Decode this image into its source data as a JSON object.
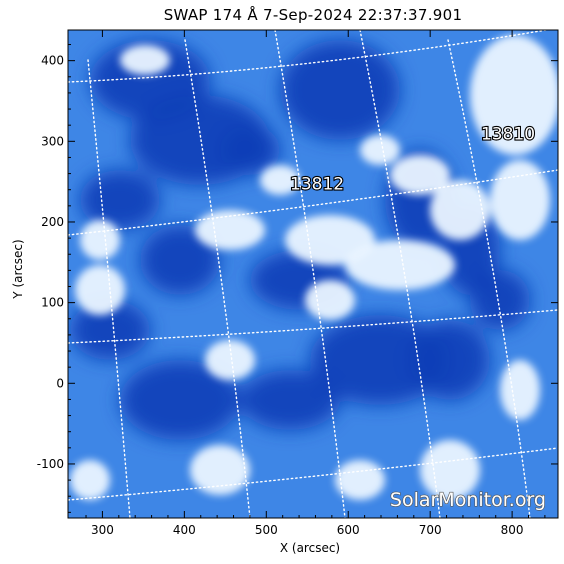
{
  "title": "SWAP 174 Å  7-Sep-2024 22:37:37.901",
  "axes": {
    "xlabel": "X (arcsec)",
    "ylabel": "Y (arcsec)",
    "xlim": [
      258,
      856
    ],
    "ylim": [
      -167,
      438
    ],
    "xticks": [
      300,
      400,
      500,
      600,
      700,
      800
    ],
    "yticks": [
      -100,
      0,
      100,
      200,
      300,
      400
    ]
  },
  "active_regions": [
    {
      "number": "13812",
      "x": 562,
      "y": 240
    },
    {
      "number": "13810",
      "x": 795,
      "y": 302
    }
  ],
  "colors": {
    "dark_blue": "#0a3fb8",
    "mid_blue": "#3e86e6",
    "bright": "#eaf4ff",
    "grid": "#ffffff"
  },
  "watermark": "SolarMonitor.org"
}
